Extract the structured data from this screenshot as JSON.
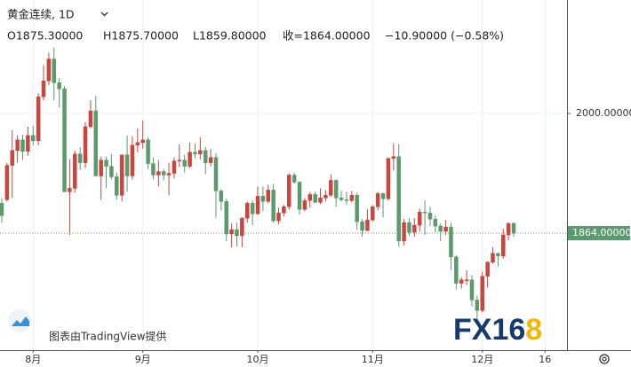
{
  "header": {
    "symbol": "黄金连续, 1D",
    "open": "O1875.30000",
    "high": "H1875.70000",
    "low": "L1859.80000",
    "close": "收=1864.00000",
    "change": "−10.90000 (−0.58%)"
  },
  "watermark": "图表由TradingView提供",
  "brand_main": "FX16",
  "brand_accent": "8",
  "chart_data": {
    "type": "candlestick",
    "up_color": "#c8463f",
    "down_color": "#5b9a6c",
    "ylim": [
      1731,
      2129
    ],
    "yticks": [
      {
        "value": 2000,
        "label": "2000.00000"
      }
    ],
    "last_price": {
      "value": 1864,
      "label": "1864.00000"
    },
    "xticks": [
      {
        "value": 6,
        "label": "8月"
      },
      {
        "value": 27,
        "label": "9月"
      },
      {
        "value": 49,
        "label": "10月"
      },
      {
        "value": 71,
        "label": "11月"
      },
      {
        "value": 92,
        "label": "12月"
      },
      {
        "value": 104,
        "label": "16"
      }
    ],
    "grid": true,
    "ohlc": [
      [
        1898,
        1904,
        1876,
        1884
      ],
      [
        1902,
        1944,
        1900,
        1941
      ],
      [
        1941,
        1981,
        1904,
        1958
      ],
      [
        1958,
        1975,
        1944,
        1970
      ],
      [
        1970,
        1976,
        1947,
        1957
      ],
      [
        1957,
        1985,
        1952,
        1975
      ],
      [
        1975,
        1986,
        1964,
        1969
      ],
      [
        1969,
        2023,
        1964,
        2019
      ],
      [
        2019,
        2055,
        2015,
        2037
      ],
      [
        2037,
        2069,
        2032,
        2062
      ],
      [
        2062,
        2075,
        2015,
        2035
      ],
      [
        2035,
        2040,
        2007,
        2028
      ],
      [
        2028,
        2031,
        1911,
        1911
      ],
      [
        1911,
        1948,
        1862,
        1915
      ],
      [
        1915,
        1958,
        1910,
        1954
      ],
      [
        1954,
        1962,
        1936,
        1944
      ],
      [
        1944,
        1990,
        1938,
        1985
      ],
      [
        1985,
        2015,
        1983,
        2003
      ],
      [
        2003,
        2020,
        1929,
        1929
      ],
      [
        1929,
        1951,
        1902,
        1947
      ],
      [
        1947,
        1951,
        1915,
        1940
      ],
      [
        1940,
        1954,
        1925,
        1928
      ],
      [
        1928,
        1933,
        1902,
        1907
      ],
      [
        1907,
        1953,
        1900,
        1953
      ],
      [
        1953,
        1975,
        1911,
        1929
      ],
      [
        1929,
        1974,
        1925,
        1964
      ],
      [
        1964,
        1983,
        1956,
        1967
      ],
      [
        1967,
        1992,
        1960,
        1970
      ],
      [
        1970,
        1973,
        1937,
        1943
      ],
      [
        1943,
        1950,
        1925,
        1930
      ],
      [
        1930,
        1947,
        1917,
        1934
      ],
      [
        1934,
        1937,
        1924,
        1930
      ],
      [
        1930,
        1944,
        1907,
        1932
      ],
      [
        1932,
        1950,
        1926,
        1946
      ],
      [
        1946,
        1965,
        1939,
        1947
      ],
      [
        1947,
        1953,
        1933,
        1940
      ],
      [
        1940,
        1967,
        1938,
        1956
      ],
      [
        1956,
        1966,
        1949,
        1954
      ],
      [
        1954,
        1973,
        1948,
        1958
      ],
      [
        1958,
        1962,
        1931,
        1944
      ],
      [
        1944,
        1960,
        1940,
        1950
      ],
      [
        1950,
        1955,
        1882,
        1912
      ],
      [
        1912,
        1914,
        1890,
        1900
      ],
      [
        1900,
        1903,
        1855,
        1863
      ],
      [
        1863,
        1875,
        1848,
        1868
      ],
      [
        1868,
        1876,
        1849,
        1861
      ],
      [
        1861,
        1882,
        1848,
        1881
      ],
      [
        1881,
        1900,
        1876,
        1898
      ],
      [
        1898,
        1901,
        1873,
        1886
      ],
      [
        1886,
        1917,
        1885,
        1906
      ],
      [
        1906,
        1917,
        1889,
        1900
      ],
      [
        1900,
        1919,
        1898,
        1913
      ],
      [
        1913,
        1920,
        1876,
        1878
      ],
      [
        1878,
        1893,
        1874,
        1887
      ],
      [
        1887,
        1896,
        1883,
        1894
      ],
      [
        1894,
        1932,
        1891,
        1930
      ],
      [
        1930,
        1933,
        1920,
        1922
      ],
      [
        1922,
        1923,
        1885,
        1891
      ],
      [
        1891,
        1904,
        1889,
        1901
      ],
      [
        1901,
        1911,
        1893,
        1908
      ],
      [
        1908,
        1911,
        1898,
        1899
      ],
      [
        1899,
        1915,
        1897,
        1904
      ],
      [
        1904,
        1913,
        1900,
        1907
      ],
      [
        1907,
        1931,
        1905,
        1924
      ],
      [
        1924,
        1925,
        1894,
        1904
      ],
      [
        1904,
        1912,
        1900,
        1902
      ],
      [
        1902,
        1911,
        1896,
        1901
      ],
      [
        1901,
        1912,
        1899,
        1907
      ],
      [
        1907,
        1910,
        1868,
        1877
      ],
      [
        1877,
        1880,
        1860,
        1867
      ],
      [
        1867,
        1891,
        1866,
        1879
      ],
      [
        1879,
        1896,
        1877,
        1894
      ],
      [
        1894,
        1911,
        1890,
        1909
      ],
      [
        1909,
        1910,
        1882,
        1903
      ],
      [
        1903,
        1950,
        1901,
        1949
      ],
      [
        1949,
        1966,
        1935,
        1951
      ],
      [
        1951,
        1965,
        1849,
        1855
      ],
      [
        1855,
        1880,
        1850,
        1876
      ],
      [
        1876,
        1881,
        1861,
        1865
      ],
      [
        1865,
        1881,
        1860,
        1873
      ],
      [
        1873,
        1892,
        1866,
        1888
      ],
      [
        1888,
        1901,
        1862,
        1887
      ],
      [
        1887,
        1894,
        1872,
        1880
      ],
      [
        1880,
        1884,
        1865,
        1872
      ],
      [
        1872,
        1875,
        1855,
        1866
      ],
      [
        1866,
        1879,
        1862,
        1871
      ],
      [
        1871,
        1876,
        1822,
        1837
      ],
      [
        1837,
        1839,
        1800,
        1807
      ],
      [
        1807,
        1814,
        1801,
        1811
      ],
      [
        1811,
        1822,
        1805,
        1811
      ],
      [
        1811,
        1816,
        1781,
        1788
      ],
      [
        1788,
        1793,
        1764,
        1776
      ],
      [
        1776,
        1820,
        1774,
        1815
      ],
      [
        1815,
        1832,
        1802,
        1831
      ],
      [
        1831,
        1848,
        1829,
        1841
      ],
      [
        1841,
        1842,
        1826,
        1838
      ],
      [
        1838,
        1869,
        1835,
        1862
      ],
      [
        1862,
        1876,
        1856,
        1875
      ],
      [
        1875.3,
        1875.7,
        1859.8,
        1864
      ]
    ]
  }
}
